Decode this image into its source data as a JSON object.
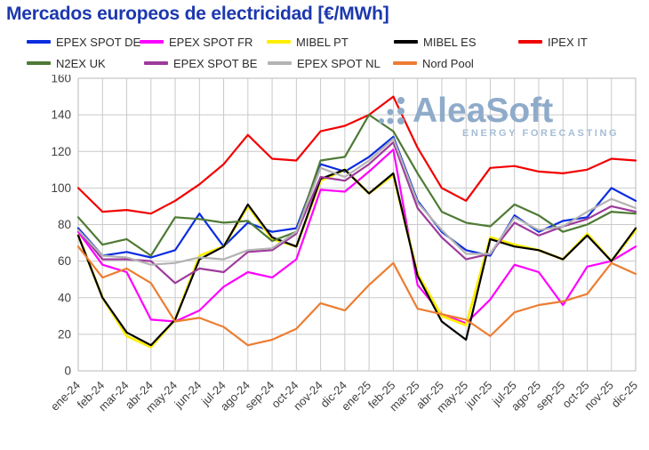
{
  "title": "Mercados europeos de electricidad [€/MWh]",
  "logo": {
    "name": "AleaSoft",
    "tagline": "ENERGY FORECASTING"
  },
  "colors": {
    "title_text": "#1c38ae",
    "gridline": "#c9c9c9",
    "plot_frame": "#b9b9b9",
    "axis_text": "#404040",
    "logo_blue": "#8fabca"
  },
  "chart_data": {
    "type": "line",
    "title": "Mercados europeos de electricidad [€/MWh]",
    "xlabel": "",
    "ylabel": "",
    "ylim": [
      0,
      160
    ],
    "yticks": [
      0,
      20,
      40,
      60,
      80,
      100,
      120,
      140,
      160
    ],
    "grid": true,
    "legend_position": "top",
    "categories": [
      "ene-24",
      "feb-24",
      "mar-24",
      "abr-24",
      "may-24",
      "jun-24",
      "jul-24",
      "ago-24",
      "sep-24",
      "oct-24",
      "nov-24",
      "dic-24",
      "ene-25",
      "feb-25",
      "mar-25",
      "abr-25",
      "may-25",
      "jun-25",
      "jul-25",
      "ago-25",
      "sep-25",
      "oct-25",
      "nov-25",
      "dic-25"
    ],
    "series": [
      {
        "name": "EPEX SPOT DE",
        "color": "#0a2ce0",
        "values": [
          78,
          63,
          65,
          62,
          66,
          86,
          68,
          81,
          76,
          78,
          113,
          109,
          117,
          128,
          93,
          76,
          66,
          63,
          85,
          76,
          82,
          84,
          100,
          93
        ]
      },
      {
        "name": "EPEX SPOT FR",
        "color": "#ff00ff",
        "values": [
          76,
          58,
          54,
          28,
          27,
          33,
          46,
          54,
          51,
          61,
          99,
          98,
          109,
          121,
          47,
          31,
          26,
          39,
          58,
          54,
          36,
          57,
          60,
          68
        ]
      },
      {
        "name": "MIBEL PT",
        "color": "#ffee00",
        "values": [
          74,
          40,
          19,
          13,
          28,
          63,
          68,
          90,
          72,
          68,
          104,
          110,
          97,
          107,
          53,
          30,
          25,
          73,
          69,
          66,
          61,
          75,
          60,
          77
        ]
      },
      {
        "name": "MIBEL ES",
        "color": "#000000",
        "values": [
          74,
          40,
          21,
          14,
          28,
          61,
          68,
          91,
          73,
          68,
          105,
          110,
          97,
          108,
          52,
          27,
          17,
          72,
          68,
          66,
          61,
          74,
          60,
          78
        ]
      },
      {
        "name": "IPEX IT",
        "color": "#f20000",
        "values": [
          100,
          87,
          88,
          86,
          93,
          102,
          113,
          129,
          116,
          115,
          131,
          134,
          140,
          150,
          122,
          100,
          93,
          111,
          112,
          109,
          108,
          110,
          116,
          115
        ]
      },
      {
        "name": "N2EX UK",
        "color": "#4e7a35",
        "values": [
          84,
          69,
          72,
          63,
          84,
          83,
          81,
          82,
          71,
          76,
          115,
          117,
          140,
          131,
          108,
          87,
          81,
          79,
          91,
          85,
          76,
          80,
          87,
          86
        ]
      },
      {
        "name": "EPEX SPOT BE",
        "color": "#9e3a9b",
        "values": [
          77,
          61,
          61,
          60,
          48,
          56,
          54,
          65,
          66,
          75,
          106,
          104,
          113,
          125,
          89,
          73,
          61,
          64,
          81,
          74,
          79,
          83,
          90,
          87
        ]
      },
      {
        "name": "EPEX SPOT NL",
        "color": "#b3b3b3",
        "values": [
          77,
          63,
          62,
          58,
          59,
          62,
          61,
          66,
          67,
          76,
          111,
          106,
          115,
          127,
          92,
          77,
          64,
          64,
          84,
          77,
          79,
          87,
          94,
          89
        ]
      },
      {
        "name": "Nord Pool",
        "color": "#ed7d31",
        "values": [
          68,
          51,
          56,
          48,
          27,
          29,
          24,
          14,
          17,
          23,
          37,
          33,
          47,
          59,
          34,
          31,
          28,
          19,
          32,
          36,
          38,
          42,
          59,
          53
        ]
      }
    ]
  }
}
